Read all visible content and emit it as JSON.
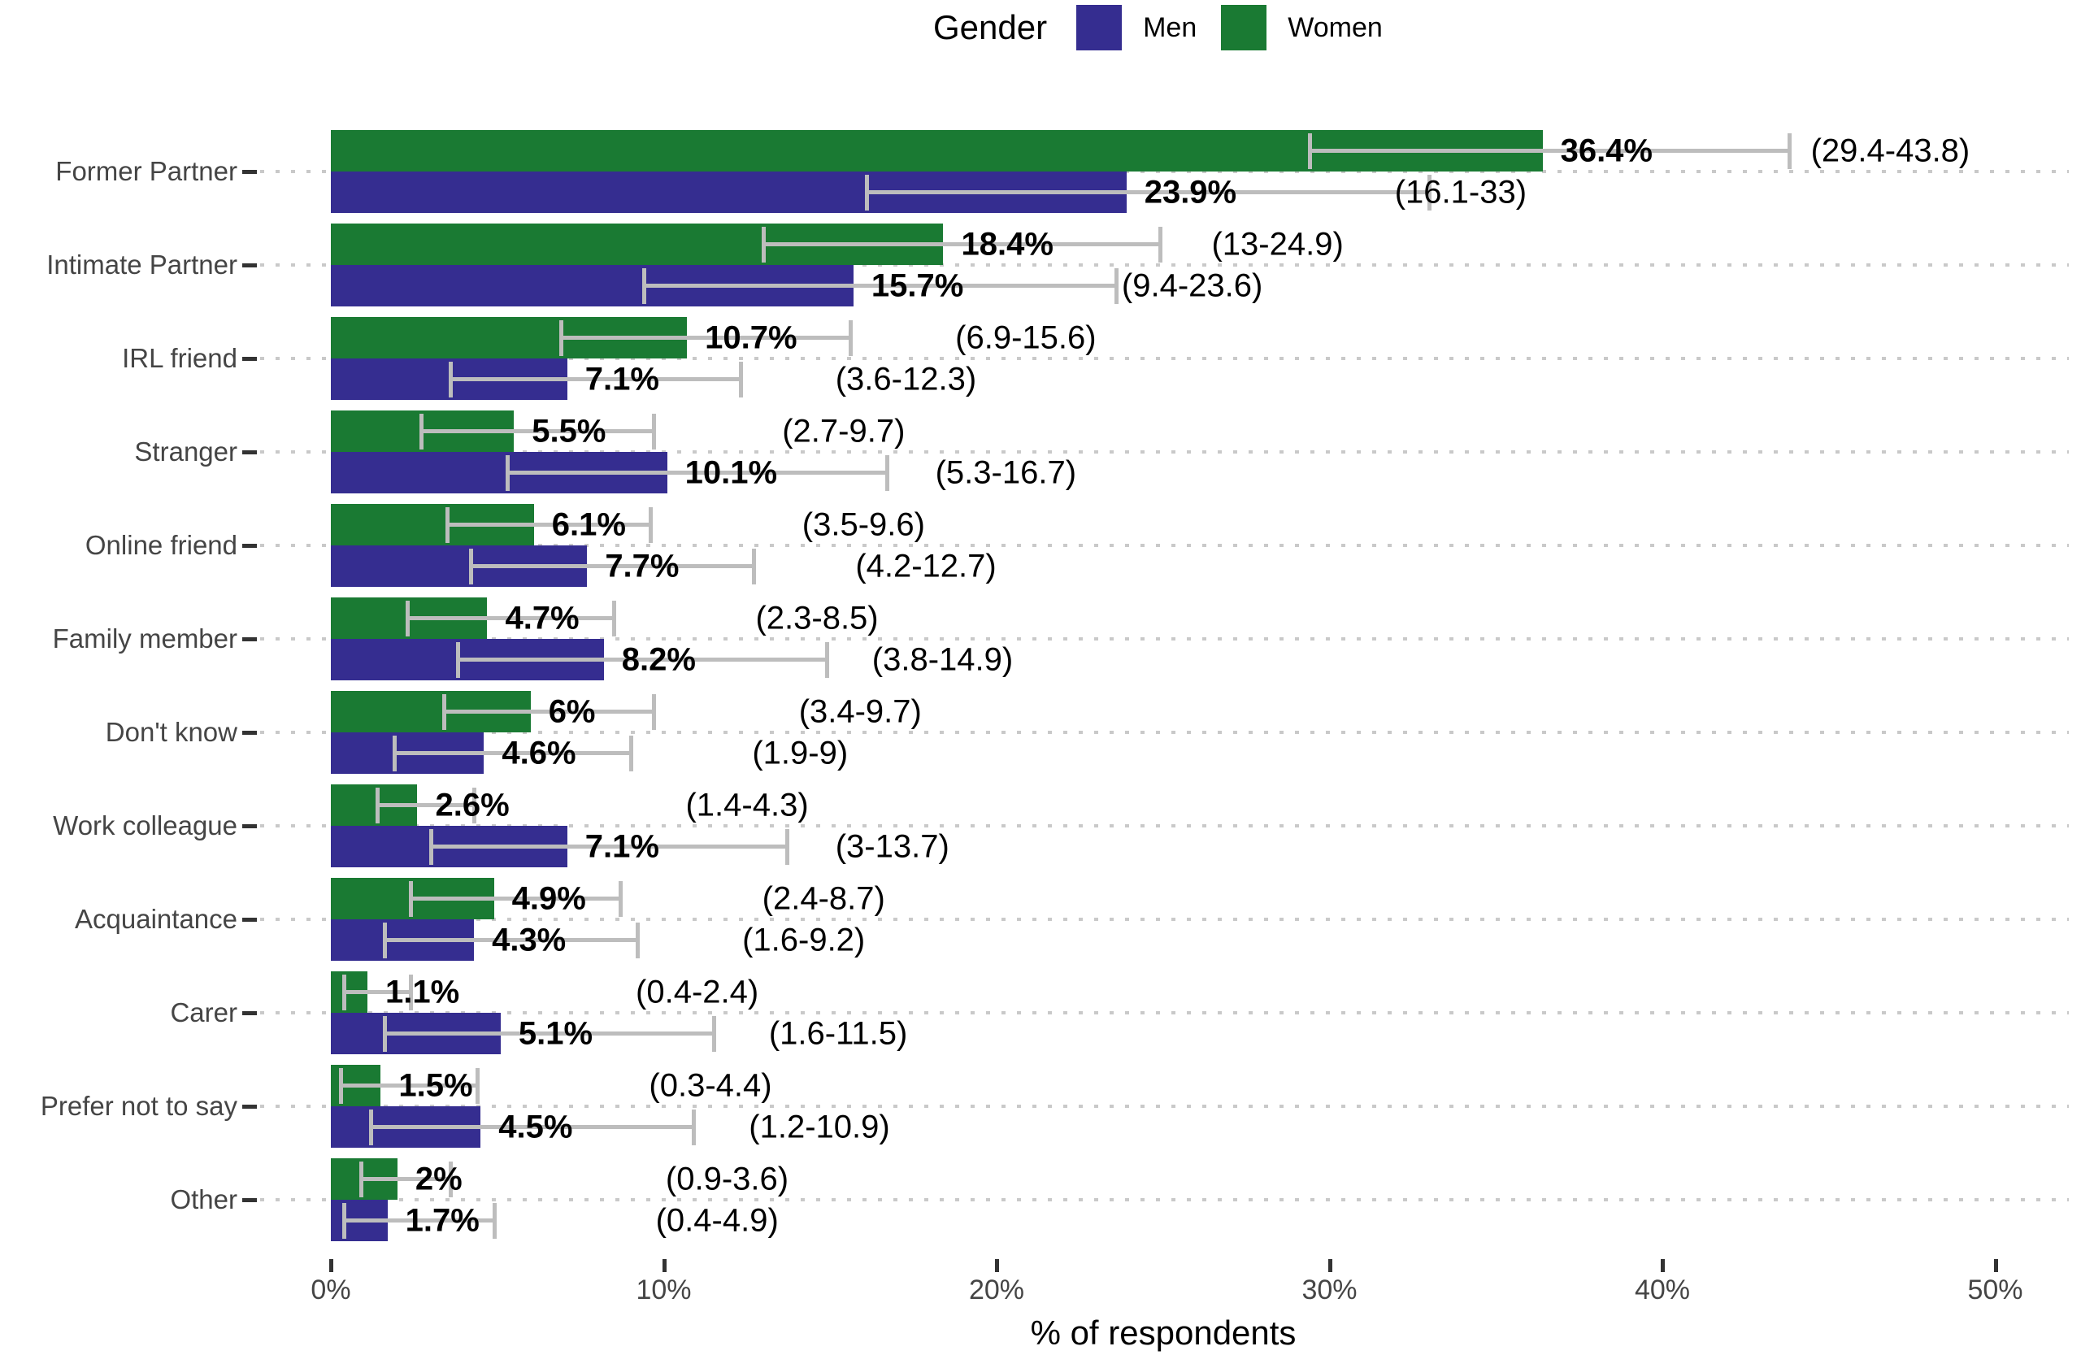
{
  "legend": {
    "title": "Gender",
    "items": [
      {
        "label": "Men",
        "color": "#352D90"
      },
      {
        "label": "Women",
        "color": "#1A7A33"
      }
    ]
  },
  "axis": {
    "x_title": "% of respondents"
  },
  "colors": {
    "men": "#352D90",
    "women": "#1A7A33",
    "error_bar": "#BDBDBD",
    "grid_dots": "#C9C9C9",
    "axis_text": "#454545"
  },
  "chart_data": {
    "type": "bar",
    "orientation": "horizontal",
    "title": "",
    "xlabel": "% of respondents",
    "ylabel": "",
    "xlim": [
      0,
      52.5
    ],
    "grid": "dotted horizontal line at each category center",
    "legend_position": "top-center",
    "x_ticks": [
      {
        "value": 0,
        "label": "0%"
      },
      {
        "value": 10,
        "label": "10%"
      },
      {
        "value": 20,
        "label": "20%"
      },
      {
        "value": 30,
        "label": "30%"
      },
      {
        "value": 40,
        "label": "40%"
      },
      {
        "value": 50,
        "label": "50%"
      }
    ],
    "categories": [
      "Former Partner",
      "Intimate Partner",
      "IRL friend",
      "Stranger",
      "Online friend",
      "Family member",
      "Don't know",
      "Work colleague",
      "Acquaintance",
      "Carer",
      "Prefer not to say",
      "Other"
    ],
    "series": [
      {
        "name": "Women",
        "position": "top",
        "color": "#1A7A33",
        "values": [
          36.4,
          18.4,
          10.7,
          5.5,
          6.1,
          4.7,
          6,
          2.6,
          4.9,
          1.1,
          1.5,
          2
        ],
        "value_labels": [
          "36.4%",
          "18.4%",
          "10.7%",
          "5.5%",
          "6.1%",
          "4.7%",
          "6%",
          "2.6%",
          "4.9%",
          "1.1%",
          "1.5%",
          "2%"
        ],
        "ci_low": [
          29.4,
          13,
          6.9,
          2.7,
          3.5,
          2.3,
          3.4,
          1.4,
          2.4,
          0.4,
          0.3,
          0.9
        ],
        "ci_high": [
          43.8,
          24.9,
          15.6,
          9.7,
          9.6,
          8.5,
          9.7,
          4.3,
          8.7,
          2.4,
          4.4,
          3.6
        ],
        "ci_labels": [
          "(29.4-43.8)",
          "(13-24.9)",
          "(6.9-15.6)",
          "(2.7-9.7)",
          "(3.5-9.6)",
          "(2.3-8.5)",
          "(3.4-9.7)",
          "(1.4-4.3)",
          "(2.4-8.7)",
          "(0.4-2.4)",
          "(0.3-4.4)",
          "(0.9-3.6)"
        ]
      },
      {
        "name": "Men",
        "position": "bottom",
        "color": "#352D90",
        "values": [
          23.9,
          15.7,
          7.1,
          10.1,
          7.7,
          8.2,
          4.6,
          7.1,
          4.3,
          5.1,
          4.5,
          1.7
        ],
        "value_labels": [
          "23.9%",
          "15.7%",
          "7.1%",
          "10.1%",
          "7.7%",
          "8.2%",
          "4.6%",
          "7.1%",
          "4.3%",
          "5.1%",
          "4.5%",
          "1.7%"
        ],
        "ci_low": [
          16.1,
          9.4,
          3.6,
          5.3,
          4.2,
          3.8,
          1.9,
          3,
          1.6,
          1.6,
          1.2,
          0.4
        ],
        "ci_high": [
          33,
          23.6,
          12.3,
          16.7,
          12.7,
          14.9,
          9,
          13.7,
          9.2,
          11.5,
          10.9,
          4.9
        ],
        "ci_labels": [
          "(16.1-33)",
          "(9.4-23.6)",
          "(3.6-12.3)",
          "(5.3-16.7)",
          "(4.2-12.7)",
          "(3.8-14.9)",
          "(1.9-9)",
          "(3-13.7)",
          "(1.6-9.2)",
          "(1.6-11.5)",
          "(1.2-10.9)",
          "(0.4-4.9)"
        ]
      }
    ],
    "error_bar_color": "#BDBDBD"
  }
}
